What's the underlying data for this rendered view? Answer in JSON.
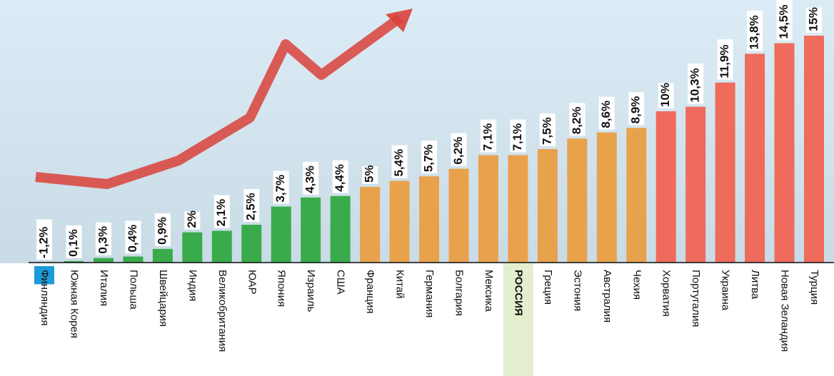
{
  "chart_data": {
    "type": "bar",
    "categories": [
      "Финляндия",
      "Южная Корея",
      "Италия",
      "Польша",
      "Швейцария",
      "Индия",
      "Великобритания",
      "ЮАР",
      "Япония",
      "Израиль",
      "США",
      "Франция",
      "Китай",
      "Германия",
      "Болгария",
      "Мексика",
      "РОССИЯ",
      "Греция",
      "Эстония",
      "Австралия",
      "Чехия",
      "Хорватия",
      "Португалия",
      "Украина",
      "Литва",
      "Новая Зеландия",
      "Турция"
    ],
    "values": [
      -1.2,
      0.1,
      0.3,
      0.4,
      0.9,
      2,
      2.1,
      2.5,
      3.7,
      4.3,
      4.4,
      5,
      5.4,
      5.7,
      6.2,
      7.1,
      7.1,
      7.5,
      8.2,
      8.6,
      8.9,
      10,
      10.3,
      11.9,
      13.8,
      14.5,
      15
    ],
    "value_labels": [
      "-1,2%",
      "0,1%",
      "0,3%",
      "0,4%",
      "0,9%",
      "2%",
      "2,1%",
      "2,5%",
      "3,7%",
      "4,3%",
      "4,4%",
      "5%",
      "5,4%",
      "5,7%",
      "6,2%",
      "7,1%",
      "7,1%",
      "7,5%",
      "8,2%",
      "8,6%",
      "8,9%",
      "10%",
      "10,3%",
      "11,9%",
      "13,8%",
      "14,5%",
      "15%"
    ],
    "colors": [
      "#1b9bd7",
      "#3aab4b",
      "#3aab4b",
      "#3aab4b",
      "#3aab4b",
      "#3aab4b",
      "#3aab4b",
      "#3aab4b",
      "#3aab4b",
      "#3aab4b",
      "#3aab4b",
      "#e9a24c",
      "#e9a24c",
      "#e9a24c",
      "#e9a24c",
      "#e9a24c",
      "#e9a24c",
      "#e9a24c",
      "#e9a24c",
      "#e9a24c",
      "#e9a24c",
      "#ef6b5b",
      "#ef6b5b",
      "#ef6b5b",
      "#ef6b5b",
      "#ef6b5b",
      "#ef6b5b"
    ]
  }
}
